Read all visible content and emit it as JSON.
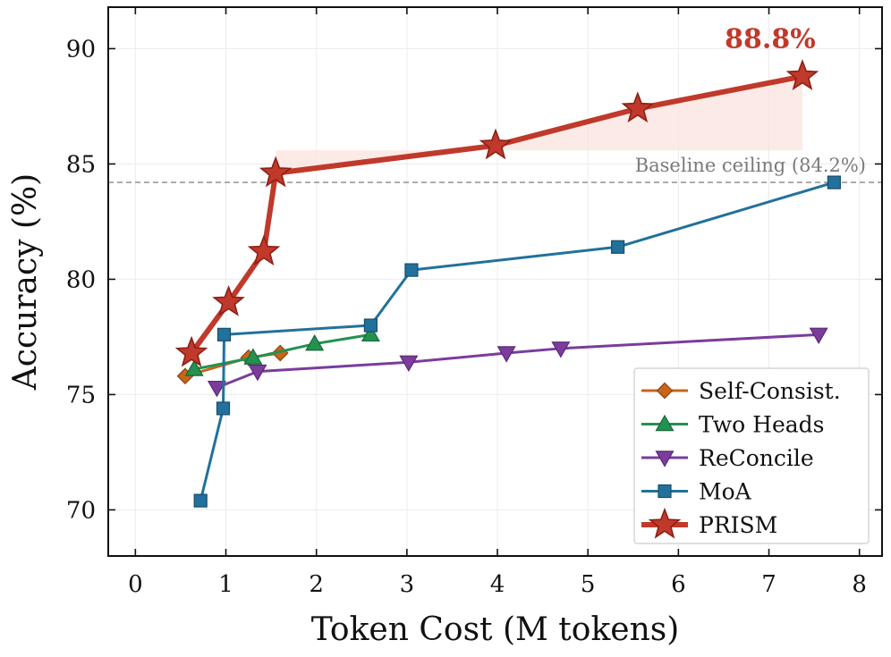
{
  "chart_data": {
    "type": "line",
    "title": "",
    "xlabel": "Token Cost (M tokens)",
    "ylabel": "Accuracy (%)",
    "xlim": [
      -0.3,
      8.25
    ],
    "ylim": [
      68.0,
      91.8
    ],
    "xticks": [
      0,
      1,
      2,
      3,
      4,
      5,
      6,
      7,
      8
    ],
    "yticks": [
      70,
      75,
      80,
      85,
      90
    ],
    "grid": true,
    "legend_position": "lower-right",
    "series": [
      {
        "name": "Self-Consist.",
        "color": "#c8651b",
        "marker": "diamond",
        "x": [
          0.55,
          1.25,
          1.6
        ],
        "y": [
          75.8,
          76.6,
          76.8
        ]
      },
      {
        "name": "Two Heads",
        "color": "#24914f",
        "marker": "triangle-up",
        "x": [
          0.65,
          1.3,
          1.98,
          2.6
        ],
        "y": [
          76.1,
          76.6,
          77.2,
          77.6
        ]
      },
      {
        "name": "ReConcile",
        "color": "#7b3c9c",
        "marker": "triangle-down",
        "x": [
          0.9,
          1.35,
          3.02,
          4.1,
          4.7,
          7.55
        ],
        "y": [
          75.3,
          76.0,
          76.4,
          76.8,
          77.0,
          77.6
        ]
      },
      {
        "name": "MoA",
        "color": "#22719c",
        "marker": "square",
        "x": [
          0.72,
          0.97,
          0.98,
          2.6,
          3.05,
          5.33,
          7.72
        ],
        "y": [
          70.4,
          74.4,
          77.6,
          78.0,
          80.4,
          81.4,
          84.2
        ]
      },
      {
        "name": "PRISM",
        "color": "#c0392b",
        "marker": "star",
        "x": [
          0.62,
          1.03,
          1.42,
          1.55,
          3.98,
          5.55,
          7.37
        ],
        "y": [
          76.8,
          79.0,
          81.2,
          84.6,
          85.8,
          87.4,
          88.8
        ]
      }
    ],
    "reference_line": {
      "y": 84.2,
      "label": "Baseline ceiling (84.2%)"
    },
    "annotations": [
      {
        "text": "88.8%",
        "x": 7.37,
        "y": 88.8,
        "color": "#c0392b"
      }
    ]
  }
}
